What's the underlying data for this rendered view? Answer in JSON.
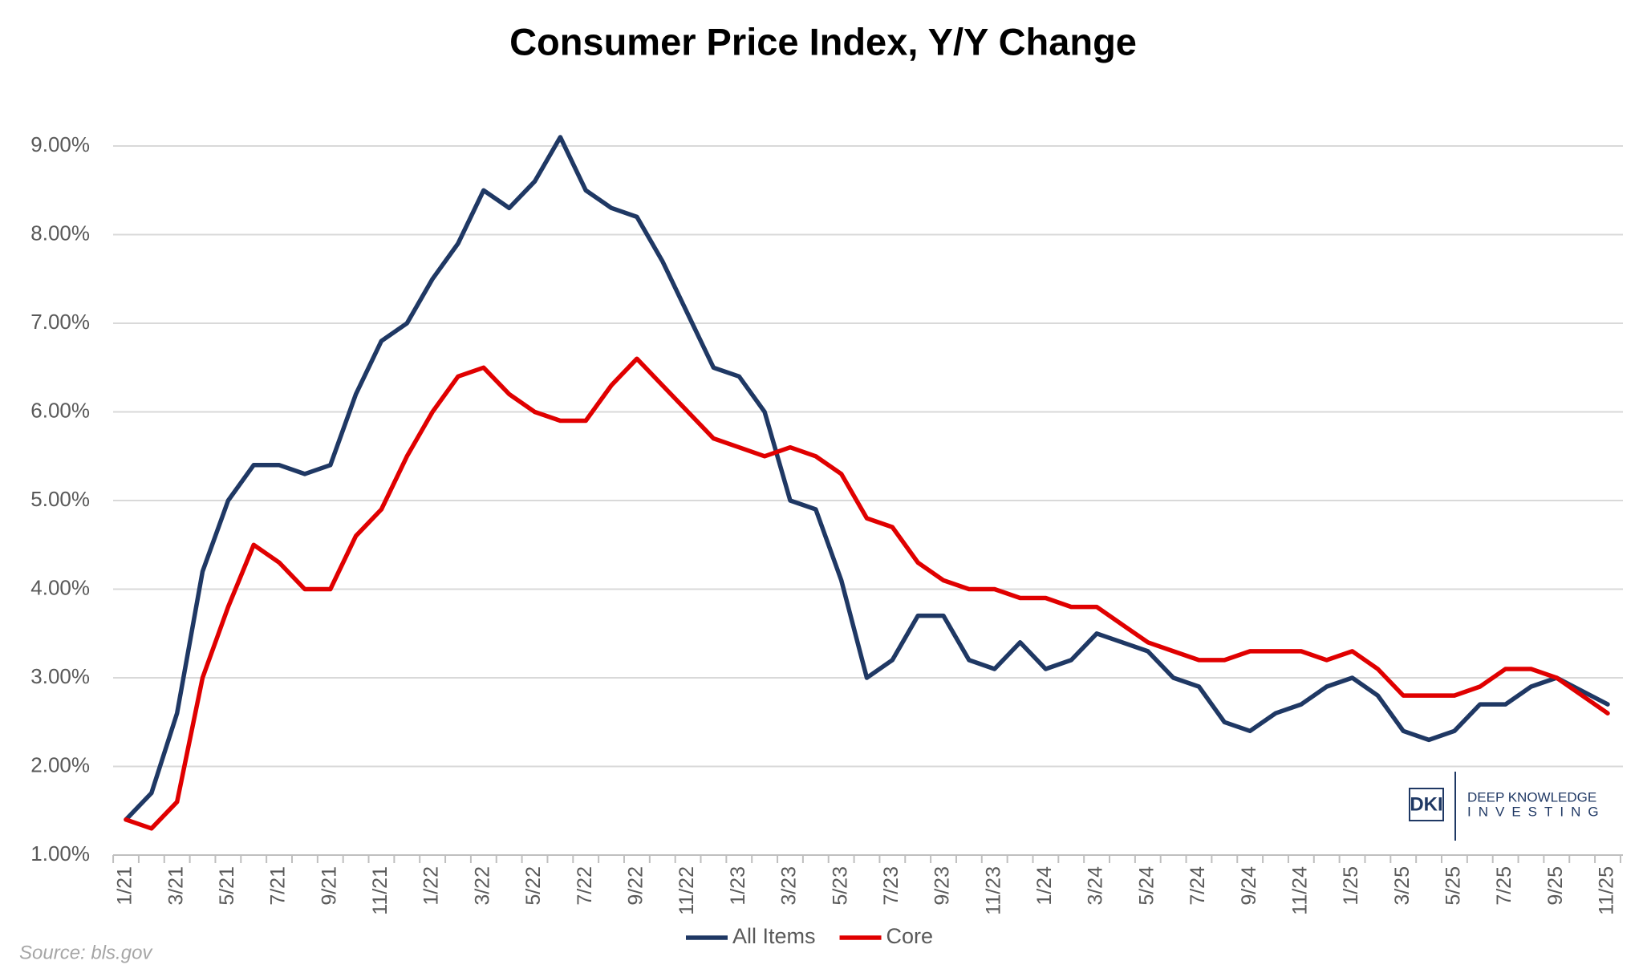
{
  "chart_data": {
    "type": "line",
    "title": "Consumer Price Index, Y/Y Change",
    "categories": [
      "1/21",
      null,
      "3/21",
      null,
      "5/21",
      null,
      "7/21",
      null,
      "9/21",
      null,
      "11/21",
      null,
      "1/22",
      null,
      "3/22",
      null,
      "5/22",
      null,
      "7/22",
      null,
      "9/22",
      null,
      "11/22",
      null,
      "1/23",
      null,
      "3/23",
      null,
      "5/23",
      null,
      "7/23",
      null,
      "9/23",
      null,
      "11/23",
      null,
      "1/24",
      null,
      "3/24",
      null,
      "5/24",
      null,
      "7/24",
      null,
      "9/24",
      null,
      "11/24",
      null,
      "1/25",
      null,
      "3/25",
      null,
      "5/25",
      null,
      "7/25",
      null,
      "9/25",
      null,
      "11/25"
    ],
    "series": [
      {
        "name": "All Items",
        "color": "#1f3864",
        "values": [
          1.4,
          1.7,
          2.6,
          4.2,
          5.0,
          5.4,
          5.4,
          5.3,
          5.4,
          6.2,
          6.8,
          7.0,
          7.5,
          7.9,
          8.5,
          8.3,
          8.6,
          9.1,
          8.5,
          8.3,
          8.2,
          7.7,
          7.1,
          6.5,
          6.4,
          6.0,
          5.0,
          4.9,
          4.1,
          3.0,
          3.2,
          3.7,
          3.7,
          3.2,
          3.1,
          3.4,
          3.1,
          3.2,
          3.5,
          3.4,
          3.3,
          3.0,
          2.9,
          2.5,
          2.4,
          2.6,
          2.7,
          2.9,
          3.0,
          2.8,
          2.4,
          2.3,
          2.4,
          2.7,
          2.7,
          2.9,
          3.0,
          2.85,
          2.7
        ]
      },
      {
        "name": "Core",
        "color": "#e00000",
        "values": [
          1.4,
          1.3,
          1.6,
          3.0,
          3.8,
          4.5,
          4.3,
          4.0,
          4.0,
          4.6,
          4.9,
          5.5,
          6.0,
          6.4,
          6.5,
          6.2,
          6.0,
          5.9,
          5.9,
          6.3,
          6.6,
          6.3,
          6.0,
          5.7,
          5.6,
          5.5,
          5.6,
          5.5,
          5.3,
          4.8,
          4.7,
          4.3,
          4.1,
          4.0,
          4.0,
          3.9,
          3.9,
          3.8,
          3.8,
          3.6,
          3.4,
          3.3,
          3.2,
          3.2,
          3.3,
          3.3,
          3.3,
          3.2,
          3.3,
          3.1,
          2.8,
          2.8,
          2.8,
          2.9,
          3.1,
          3.1,
          3.0,
          2.8,
          2.6
        ]
      }
    ],
    "ylim": [
      1,
      9
    ],
    "yticks": [
      {
        "value": 1,
        "label": "1.00%"
      },
      {
        "value": 2,
        "label": "2.00%"
      },
      {
        "value": 3,
        "label": "3.00%"
      },
      {
        "value": 4,
        "label": "4.00%"
      },
      {
        "value": 5,
        "label": "5.00%"
      },
      {
        "value": 6,
        "label": "6.00%"
      },
      {
        "value": 7,
        "label": "7.00%"
      },
      {
        "value": 8,
        "label": "8.00%"
      },
      {
        "value": 9,
        "label": "9.00%"
      }
    ],
    "grid": true,
    "legend": "bottom",
    "source": "Source: bls.gov",
    "logo": {
      "mark": "DKI",
      "line1": "DEEP KNOWLEDGE",
      "line2": "INVESTING"
    }
  }
}
